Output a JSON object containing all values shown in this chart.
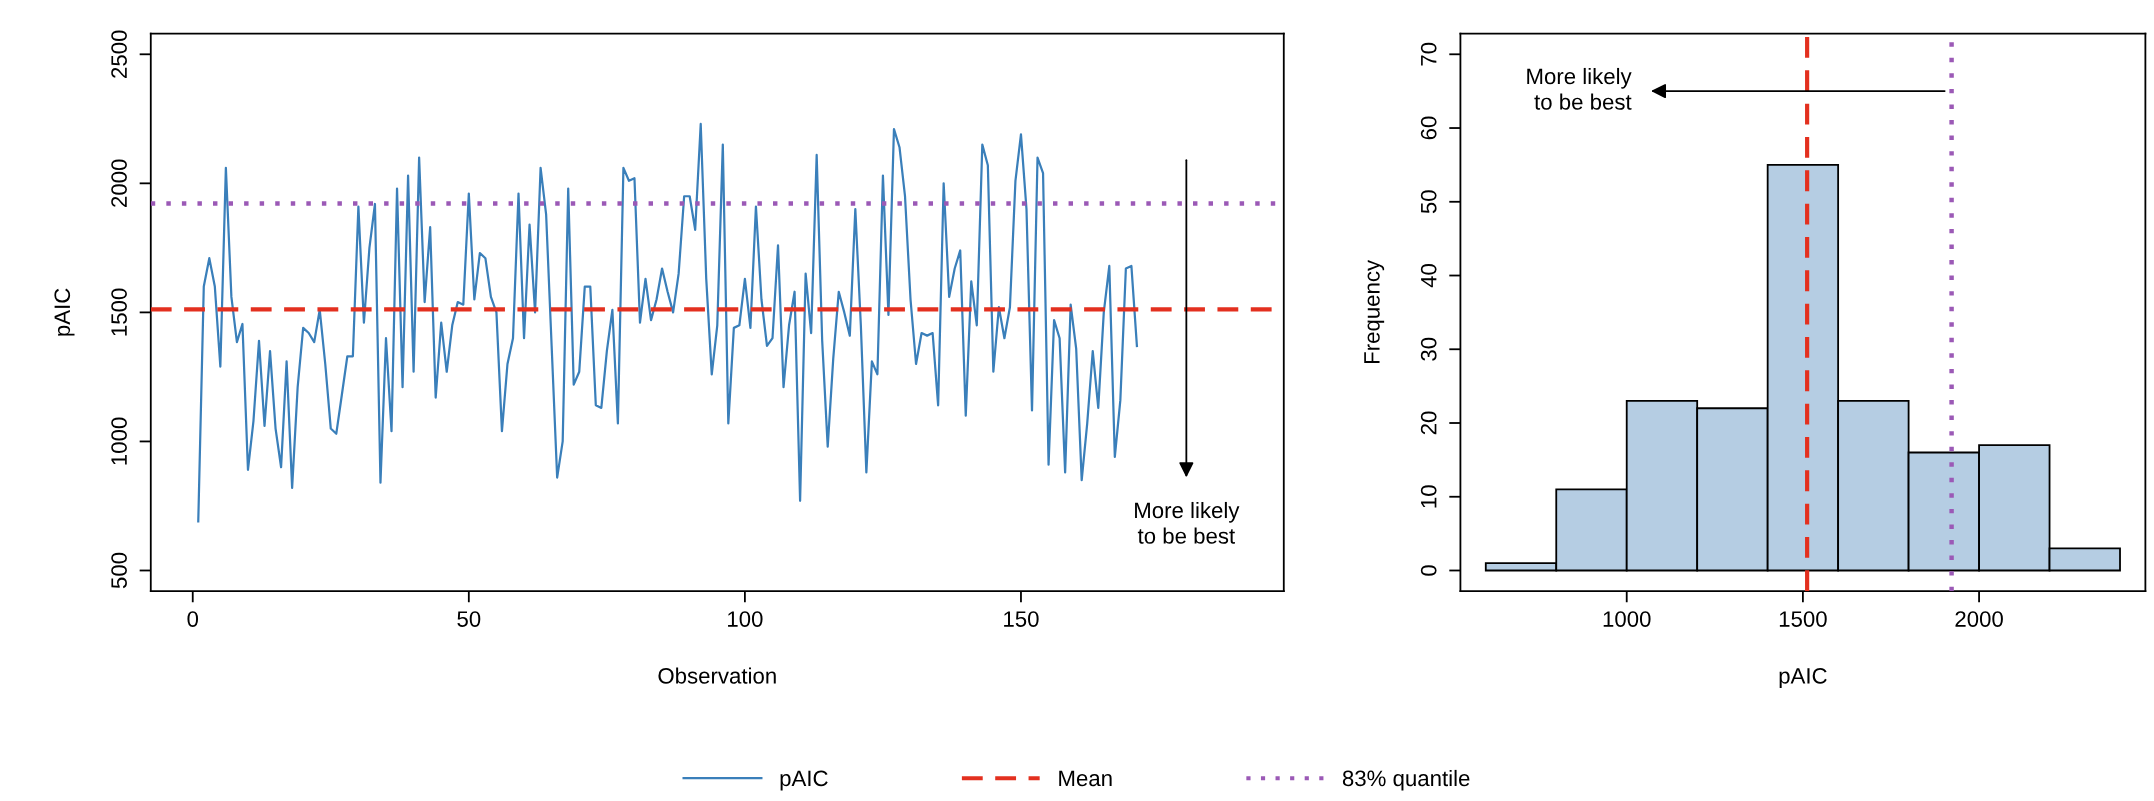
{
  "chart_data": [
    {
      "type": "line",
      "xlabel": "Observation",
      "ylabel": "pAIC",
      "x": [
        1,
        2,
        3,
        4,
        5,
        6,
        7,
        8,
        9,
        10,
        11,
        12,
        13,
        14,
        15,
        16,
        17,
        18,
        19,
        20,
        21,
        22,
        23,
        24,
        25,
        26,
        27,
        28,
        29,
        30,
        31,
        32,
        33,
        34,
        35,
        36,
        37,
        38,
        39,
        40,
        41,
        42,
        43,
        44,
        45,
        46,
        47,
        48,
        49,
        50,
        51,
        52,
        53,
        54,
        55,
        56,
        57,
        58,
        59,
        60,
        61,
        62,
        63,
        64,
        65,
        66,
        67,
        68,
        69,
        70,
        71,
        72,
        73,
        74,
        75,
        76,
        77,
        78,
        79,
        80,
        81,
        82,
        83,
        84,
        85,
        86,
        87,
        88,
        89,
        90,
        91,
        92,
        93,
        94,
        95,
        96,
        97,
        98,
        99,
        100,
        101,
        102,
        103,
        104,
        105,
        106,
        107,
        108,
        109,
        110,
        111,
        112,
        113,
        114,
        115,
        116,
        117,
        118,
        119,
        120,
        121,
        122,
        123,
        124,
        125,
        126,
        127,
        128,
        129,
        130,
        131,
        132,
        133,
        134,
        135,
        136,
        137,
        138,
        139,
        140,
        141,
        142,
        143,
        144,
        145,
        146,
        147,
        148,
        149,
        150,
        151,
        152,
        153,
        154,
        155,
        156,
        157,
        158,
        159,
        160,
        161,
        162,
        163,
        164,
        165,
        166,
        167,
        168,
        169,
        170,
        171
      ],
      "series": [
        {
          "name": "pAIC",
          "color": "#3a7fba",
          "values": [
            690,
            1600,
            1710,
            1600,
            1290,
            2060,
            1560,
            1385,
            1455,
            890,
            1080,
            1390,
            1060,
            1350,
            1050,
            900,
            1310,
            820,
            1210,
            1440,
            1420,
            1385,
            1510,
            1300,
            1050,
            1030,
            1180,
            1330,
            1330,
            1910,
            1460,
            1750,
            1920,
            840,
            1400,
            1040,
            1980,
            1210,
            2030,
            1270,
            2100,
            1540,
            1830,
            1170,
            1460,
            1270,
            1450,
            1540,
            1530,
            1960,
            1550,
            1730,
            1710,
            1560,
            1500,
            1040,
            1300,
            1400,
            1960,
            1400,
            1840,
            1500,
            2060,
            1880,
            1370,
            860,
            1000,
            1980,
            1220,
            1270,
            1600,
            1600,
            1140,
            1130,
            1350,
            1510,
            1070,
            2060,
            2010,
            2020,
            1460,
            1630,
            1470,
            1550,
            1670,
            1580,
            1500,
            1650,
            1950,
            1950,
            1820,
            2230,
            1630,
            1260,
            1450,
            2150,
            1070,
            1440,
            1450,
            1630,
            1440,
            1910,
            1550,
            1370,
            1400,
            1760,
            1210,
            1450,
            1580,
            770,
            1650,
            1420,
            2110,
            1390,
            980,
            1320,
            1580,
            1500,
            1410,
            1900,
            1450,
            880,
            1310,
            1260,
            2030,
            1490,
            2210,
            2140,
            1950,
            1550,
            1300,
            1420,
            1410,
            1420,
            1140,
            2000,
            1560,
            1670,
            1740,
            1100,
            1620,
            1450,
            2150,
            2070,
            1270,
            1520,
            1400,
            1520,
            2010,
            2190,
            1900,
            1120,
            2100,
            2040,
            910,
            1470,
            1400,
            880,
            1530,
            1360,
            850,
            1070,
            1350,
            1130,
            1500,
            1680,
            940,
            1160,
            1670,
            1680,
            1370
          ]
        }
      ],
      "xlim": [
        -7.6,
        197.6
      ],
      "ylim": [
        420,
        2580
      ],
      "xticks": [
        0,
        50,
        100,
        150
      ],
      "yticks": [
        500,
        1000,
        1500,
        2000,
        2500
      ],
      "ref_lines": [
        {
          "axis": "y",
          "value": 1512,
          "label": "Mean",
          "color": "#e3301f",
          "line_style": "dashed"
        },
        {
          "axis": "y",
          "value": 1922,
          "label": "83% quantile",
          "color": "#9b59b6",
          "line_style": "dotted"
        }
      ],
      "annotations": [
        "More likely\nto be best"
      ],
      "legend": "bottom",
      "grid": false
    },
    {
      "type": "histogram",
      "xlabel": "pAIC",
      "ylabel": "Frequency",
      "bins": [
        600,
        800,
        1000,
        1200,
        1400,
        1600,
        1800,
        2000,
        2200,
        2400
      ],
      "values": [
        1,
        11,
        23,
        22,
        55,
        23,
        16,
        17,
        3
      ],
      "color": "#b5cde3",
      "xlim": [
        528,
        2472
      ],
      "ylim": [
        -2.8,
        72.8
      ],
      "xticks": [
        1000,
        1500,
        2000
      ],
      "yticks": [
        0,
        10,
        20,
        30,
        40,
        50,
        60,
        70
      ],
      "ref_lines": [
        {
          "axis": "x",
          "value": 1512,
          "color": "#e3301f",
          "line_style": "dashed"
        },
        {
          "axis": "x",
          "value": 1922,
          "color": "#9b59b6",
          "line_style": "dotted"
        }
      ],
      "annotations": [
        "More likely\nto be best"
      ],
      "grid": false
    }
  ]
}
